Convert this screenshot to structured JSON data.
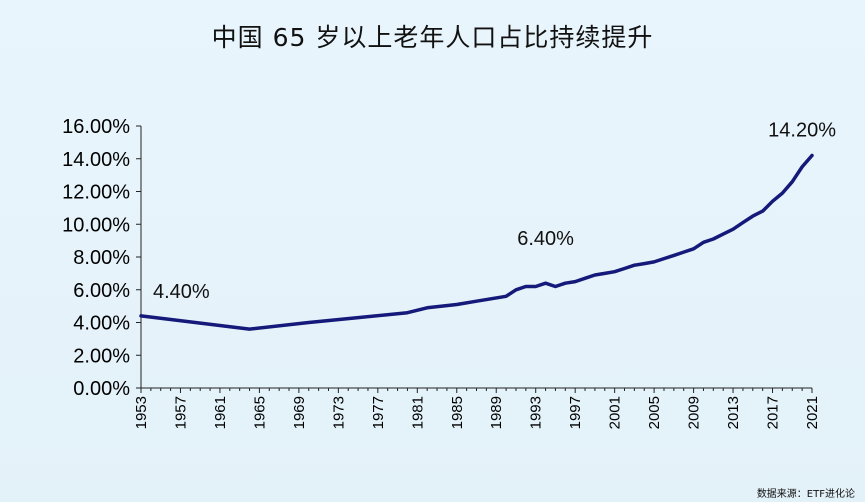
{
  "chart_data": {
    "type": "line",
    "title": "中国 65 岁以上老年人口占比持续提升",
    "xlabel": "",
    "ylabel": "",
    "ylim": [
      0,
      16
    ],
    "xlim": [
      1953,
      2021
    ],
    "yticks": [
      "0.00%",
      "2.00%",
      "4.00%",
      "6.00%",
      "8.00%",
      "10.00%",
      "12.00%",
      "14.00%",
      "16.00%"
    ],
    "xticks": [
      "1953",
      "1957",
      "1961",
      "1965",
      "1969",
      "1973",
      "1977",
      "1981",
      "1985",
      "1989",
      "1993",
      "1997",
      "2001",
      "2005",
      "2009",
      "2013",
      "2017",
      "2021"
    ],
    "grid": false,
    "line_color": "#151a7a",
    "series": [
      {
        "points": [
          [
            1953,
            4.4
          ],
          [
            1964,
            3.6
          ],
          [
            1970,
            4.0
          ],
          [
            1975,
            4.3
          ],
          [
            1980,
            4.6
          ],
          [
            1982,
            4.9
          ],
          [
            1985,
            5.1
          ],
          [
            1987,
            5.3
          ],
          [
            1990,
            5.6
          ],
          [
            1991,
            6.0
          ],
          [
            1992,
            6.2
          ],
          [
            1993,
            6.2
          ],
          [
            1994,
            6.4
          ],
          [
            1995,
            6.2
          ],
          [
            1996,
            6.4
          ],
          [
            1997,
            6.5
          ],
          [
            1998,
            6.7
          ],
          [
            1999,
            6.9
          ],
          [
            2000,
            7.0
          ],
          [
            2001,
            7.1
          ],
          [
            2002,
            7.3
          ],
          [
            2003,
            7.5
          ],
          [
            2004,
            7.6
          ],
          [
            2005,
            7.7
          ],
          [
            2006,
            7.9
          ],
          [
            2007,
            8.1
          ],
          [
            2008,
            8.3
          ],
          [
            2009,
            8.5
          ],
          [
            2010,
            8.9
          ],
          [
            2011,
            9.1
          ],
          [
            2012,
            9.4
          ],
          [
            2013,
            9.7
          ],
          [
            2014,
            10.1
          ],
          [
            2015,
            10.5
          ],
          [
            2016,
            10.8
          ],
          [
            2017,
            11.4
          ],
          [
            2018,
            11.9
          ],
          [
            2019,
            12.6
          ],
          [
            2020,
            13.5
          ],
          [
            2021,
            14.2
          ]
        ]
      }
    ],
    "annotations": [
      {
        "text": "4.40%",
        "x": 1953,
        "y": 4.4
      },
      {
        "text": "6.40%",
        "x": 1994,
        "y": 6.4
      },
      {
        "text": "14.20%",
        "x": 2021,
        "y": 14.2
      }
    ]
  },
  "source": "数据来源：ETF进化论"
}
